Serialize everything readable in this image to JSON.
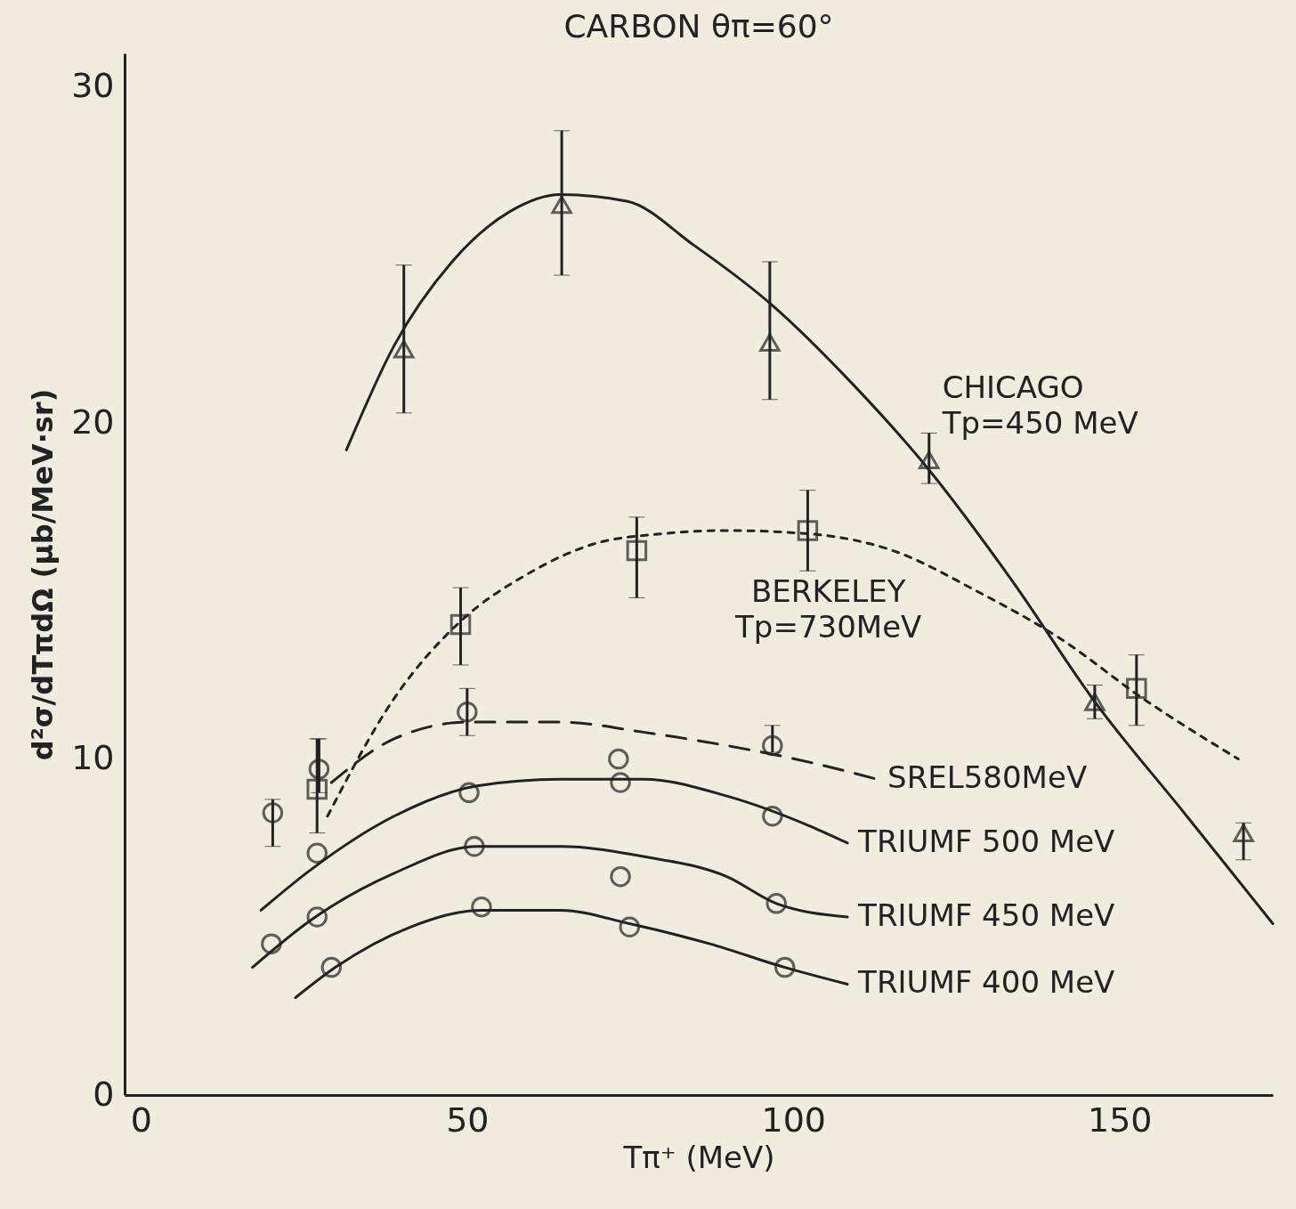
{
  "chart_data": {
    "type": "scatter",
    "title": "CARBON θπ=60°",
    "xlabel": "Tπ⁺ (MeV)",
    "ylabel": "d²σ/dTπdΩ (μb/MeV·sr)",
    "xlim": [
      -2.5,
      173.5
    ],
    "ylim": [
      0,
      31
    ],
    "xticks": [
      0,
      50,
      100,
      150
    ],
    "yticks": [
      0,
      10,
      20,
      30
    ],
    "series": [
      {
        "marker": "triangle",
        "color": "#222222",
        "x": [
          40.3,
          64.5,
          96.4,
          120.8,
          146.2,
          169
        ],
        "values": [
          22.2,
          26.5,
          22.4,
          18.9,
          11.7,
          7.8
        ],
        "errors": [
          [
            20.3,
            24.7
          ],
          [
            24.4,
            28.7
          ],
          [
            20.7,
            24.8
          ],
          [
            18.2,
            19.7
          ],
          [
            11.2,
            12.2
          ],
          [
            7,
            8.1
          ]
        ]
      },
      {
        "type": "line",
        "name": "CHICAGO Tp=450 MeV",
        "line_style": "solid",
        "color": "#222222",
        "x": [
          31.5,
          38.8,
          47.7,
          56.6,
          64.3,
          74.5,
          84.7,
          96.8,
          108.9,
          120.4,
          133.2,
          146.6,
          159.9,
          173.5
        ],
        "values": [
          19.2,
          22.3,
          24.8,
          26.3,
          26.8,
          26.6,
          25.3,
          23.5,
          21.2,
          18.7,
          15.4,
          11.6,
          8.4,
          5.1
        ]
      },
      {
        "marker": "square",
        "color": "#222222",
        "x": [
          27,
          49,
          76,
          102.2,
          152.6
        ],
        "values": [
          9.1,
          14.0,
          16.2,
          16.8,
          12.1
        ],
        "errors": [
          [
            7.8,
            10.6
          ],
          [
            12.8,
            15.1
          ],
          [
            14.8,
            17.2
          ],
          [
            15.6,
            18.0
          ],
          [
            11,
            13.1
          ]
        ]
      },
      {
        "type": "line",
        "name": "BERKELEY Tp=730MeV",
        "line_style": "dotted",
        "color": "#222222",
        "x": [
          28.6,
          38.8,
          49,
          59.2,
          69.4,
          79.6,
          89.8,
          102.6,
          115.3,
          128.1,
          140.8,
          153.6,
          168.2
        ],
        "values": [
          8.3,
          11.8,
          14.1,
          15.5,
          16.4,
          16.7,
          16.8,
          16.7,
          16.2,
          15.0,
          13.6,
          11.8,
          10.0
        ]
      },
      {
        "marker": "circle",
        "color": "#222222",
        "x": [
          20.2,
          27.3,
          50,
          73.2,
          96.8
        ],
        "values": [
          8.4,
          9.7,
          11.4,
          10.0,
          10.4
        ],
        "errors": [
          [
            7.4,
            8.8
          ],
          [
            9.0,
            10.6
          ],
          [
            10.7,
            12.1
          ],
          null,
          [
            10.2,
            11.0
          ]
        ]
      },
      {
        "type": "line",
        "name": "SREL580MeV",
        "line_style": "dashed",
        "color": "#222222",
        "x": [
          29.2,
          38.8,
          50.3,
          64.3,
          77,
          89.8,
          102.6,
          112.8
        ],
        "values": [
          9.3,
          10.6,
          11.1,
          11.1,
          10.8,
          10.4,
          9.9,
          9.4
        ]
      },
      {
        "marker": "circle",
        "color": "#222222",
        "x": [
          27,
          50.3,
          73.5,
          96.8
        ],
        "values": [
          7.2,
          9.0,
          9.3,
          8.3
        ]
      },
      {
        "type": "line",
        "name": "TRIUMF 500 MeV",
        "line_style": "solid",
        "color": "#222222",
        "x": [
          18.4,
          26,
          38.8,
          51.5,
          64.3,
          77,
          89.8,
          102.6,
          108.3
        ],
        "values": [
          5.5,
          6.7,
          8.3,
          9.2,
          9.4,
          9.4,
          8.9,
          8.0,
          7.5
        ]
      },
      {
        "marker": "circle",
        "color": "#222222",
        "x": [
          20,
          27,
          51.1,
          73.5,
          97.4
        ],
        "values": [
          4.5,
          5.3,
          7.4,
          6.5,
          5.7
        ]
      },
      {
        "type": "line",
        "name": "TRIUMF 450 MeV",
        "line_style": "solid",
        "color": "#222222",
        "x": [
          17.1,
          26,
          38.8,
          51.5,
          64.3,
          77,
          89.8,
          97.4,
          108.3
        ],
        "values": [
          3.8,
          5.2,
          6.6,
          7.4,
          7.4,
          7.1,
          6.5,
          5.7,
          5.3
        ]
      },
      {
        "marker": "circle",
        "color": "#222222",
        "x": [
          29.2,
          52.2,
          74.9,
          98.7
        ],
        "values": [
          3.8,
          5.6,
          5.0,
          3.8
        ]
      },
      {
        "type": "line",
        "name": "TRIUMF 400 MeV",
        "line_style": "solid",
        "color": "#222222",
        "x": [
          23.7,
          29.8,
          41.3,
          52.2,
          64.3,
          74.9,
          87.2,
          98.7,
          108.3
        ],
        "values": [
          2.9,
          3.8,
          5.0,
          5.5,
          5.5,
          5.1,
          4.5,
          3.8,
          3.3
        ]
      }
    ]
  }
}
